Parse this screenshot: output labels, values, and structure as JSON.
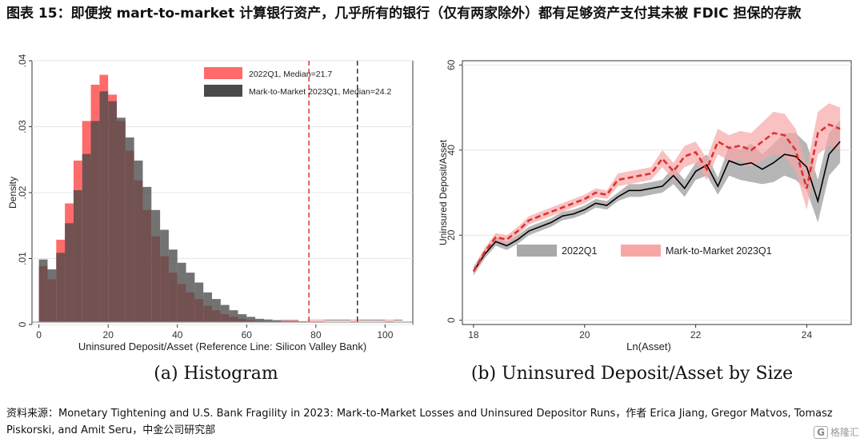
{
  "page": {
    "title": "图表 15：即便按 mart-to-market 计算银行资产，几乎所有的银行（仅有两家除外）都有足够资产支付其未被 FDIC 担保的存款",
    "source": "资料来源：Monetary Tightening and U.S. Bank Fragility in 2023: Mark-to-Market Losses and Uninsured Depositor Runs，作者 Erica Jiang, Gregor Matvos, Tomasz Piskorski, and Amit Seru，中金公司研究部",
    "watermark_icon": "G",
    "watermark": "格隆汇"
  },
  "chart_data": [
    {
      "type": "bar",
      "caption": "(a) Histogram",
      "xlabel": "Uninsured Deposit/Asset (Reference Line: Silicon Valley Bank)",
      "ylabel": "Density",
      "xlim": [
        -2,
        108
      ],
      "ylim": [
        0,
        0.04
      ],
      "xticks": [
        0,
        20,
        40,
        60,
        80,
        100
      ],
      "yticks": [
        0,
        0.01,
        0.02,
        0.03,
        0.04
      ],
      "ytick_labels": [
        "0",
        ".01",
        ".02",
        ".03",
        ".04"
      ],
      "bin_width": 2.5,
      "bins_start": 0,
      "grid": true,
      "legend_position": "top-right",
      "series": [
        {
          "name": "2022Q1, Median=21.7",
          "color": "#ff6b6b",
          "values": [
            0.0085,
            0.0065,
            0.0125,
            0.018,
            0.0245,
            0.0305,
            0.036,
            0.0375,
            0.0345,
            0.0305,
            0.026,
            0.0215,
            0.017,
            0.013,
            0.01,
            0.0075,
            0.0058,
            0.0045,
            0.0035,
            0.0025,
            0.0018,
            0.0012,
            0.0008,
            0.0005,
            0.0003,
            0.0002,
            0.0001,
            0.0001,
            0,
            0,
            0.0001,
            0,
            0,
            0,
            0,
            0,
            0,
            0,
            0,
            0,
            0,
            0
          ]
        },
        {
          "name": "Mark-to-Market 2023Q1, Median=24.2",
          "color": "#4a4a4a",
          "values": [
            0.0095,
            0.008,
            0.0105,
            0.015,
            0.02,
            0.0255,
            0.0305,
            0.035,
            0.0335,
            0.031,
            0.028,
            0.0245,
            0.0205,
            0.017,
            0.014,
            0.011,
            0.009,
            0.0075,
            0.006,
            0.0045,
            0.0035,
            0.0026,
            0.0018,
            0.0012,
            0.0008,
            0.0005,
            0.0004,
            0.0003,
            0.0002,
            0.0002,
            0.0001,
            0.0001,
            0.0001,
            0,
            0,
            0,
            0.0001,
            0,
            0,
            0,
            0.0001,
            0
          ]
        }
      ],
      "reference_lines": [
        {
          "name": "2022Q1",
          "x": 78,
          "color": "#e03030"
        },
        {
          "name": "Mark-to-Market 2023Q1",
          "x": 92,
          "color": "#333333"
        }
      ]
    },
    {
      "type": "line",
      "caption": "(b) Uninsured Deposit/Asset by Size",
      "xlabel": "Ln(Asset)",
      "ylabel": "Uninsured Deposit/Asset",
      "xlim": [
        17.8,
        24.8
      ],
      "ylim": [
        -1,
        61
      ],
      "xticks": [
        18,
        20,
        22,
        24
      ],
      "yticks": [
        0,
        20,
        40,
        60
      ],
      "grid": true,
      "legend_position": "bottom",
      "x": [
        18.0,
        18.2,
        18.4,
        18.6,
        18.8,
        19.0,
        19.2,
        19.4,
        19.6,
        19.8,
        20.0,
        20.2,
        20.4,
        20.6,
        20.8,
        21.0,
        21.2,
        21.4,
        21.6,
        21.8,
        22.0,
        22.2,
        22.4,
        22.6,
        22.8,
        23.0,
        23.2,
        23.4,
        23.6,
        23.8,
        24.0,
        24.2,
        24.4,
        24.6
      ],
      "series": [
        {
          "name": "2022Q1",
          "color": "#000000",
          "fill": "#a9a9a9",
          "values": [
            11.5,
            15.5,
            18.5,
            17.5,
            19.0,
            21.0,
            22.0,
            23.0,
            24.5,
            25.0,
            26.0,
            27.5,
            27.0,
            29.0,
            30.5,
            30.5,
            31.0,
            31.5,
            34.0,
            31.0,
            35.0,
            36.5,
            31.5,
            37.5,
            36.5,
            37.0,
            35.5,
            37.0,
            39.0,
            38.5,
            36.0,
            28.0,
            39.0,
            42.0
          ],
          "lower": [
            10.5,
            14.5,
            17.5,
            16.5,
            18.0,
            20.0,
            21.0,
            22.0,
            23.5,
            24.0,
            25.0,
            26.5,
            26.0,
            28.0,
            29.0,
            29.0,
            29.5,
            30.0,
            32.0,
            29.0,
            33.0,
            34.0,
            29.5,
            34.0,
            33.0,
            32.5,
            32.0,
            32.5,
            34.0,
            33.0,
            30.5,
            23.0,
            34.0,
            37.0
          ],
          "upper": [
            12.5,
            16.5,
            19.5,
            18.5,
            20.0,
            22.0,
            23.0,
            24.0,
            25.5,
            26.0,
            27.0,
            28.5,
            28.0,
            30.0,
            32.0,
            32.0,
            32.5,
            33.0,
            36.0,
            33.0,
            37.0,
            39.0,
            33.5,
            41.0,
            40.0,
            41.5,
            39.0,
            41.5,
            44.0,
            44.0,
            41.5,
            33.0,
            44.0,
            47.0
          ]
        },
        {
          "name": "Mark-to-Market 2023Q1",
          "color": "#e03030",
          "fill": "#f7a6a6",
          "values": [
            11.5,
            16.0,
            19.5,
            19.0,
            21.0,
            23.5,
            24.5,
            25.5,
            26.5,
            27.5,
            28.5,
            30.0,
            29.5,
            33.0,
            33.5,
            34.0,
            34.5,
            38.0,
            35.0,
            38.5,
            39.5,
            35.5,
            42.0,
            40.5,
            41.0,
            40.0,
            42.0,
            44.0,
            43.5,
            40.0,
            31.0,
            44.0,
            46.0,
            45.0
          ],
          "lower": [
            10.5,
            15.0,
            18.5,
            18.0,
            20.0,
            22.5,
            23.5,
            24.5,
            25.5,
            26.5,
            27.5,
            29.0,
            28.5,
            31.5,
            32.0,
            32.5,
            33.0,
            36.0,
            33.0,
            36.0,
            37.0,
            33.0,
            39.0,
            37.5,
            37.5,
            36.0,
            37.5,
            39.0,
            38.5,
            35.0,
            26.0,
            39.0,
            41.0,
            40.0
          ],
          "upper": [
            12.5,
            17.0,
            20.5,
            20.0,
            22.0,
            24.5,
            25.5,
            26.5,
            27.5,
            28.5,
            29.5,
            31.0,
            30.5,
            34.5,
            35.0,
            35.5,
            36.0,
            40.0,
            37.0,
            41.0,
            42.0,
            38.0,
            45.0,
            43.5,
            44.5,
            44.0,
            46.5,
            49.0,
            48.5,
            45.0,
            36.0,
            49.0,
            51.0,
            50.0
          ]
        }
      ]
    }
  ]
}
